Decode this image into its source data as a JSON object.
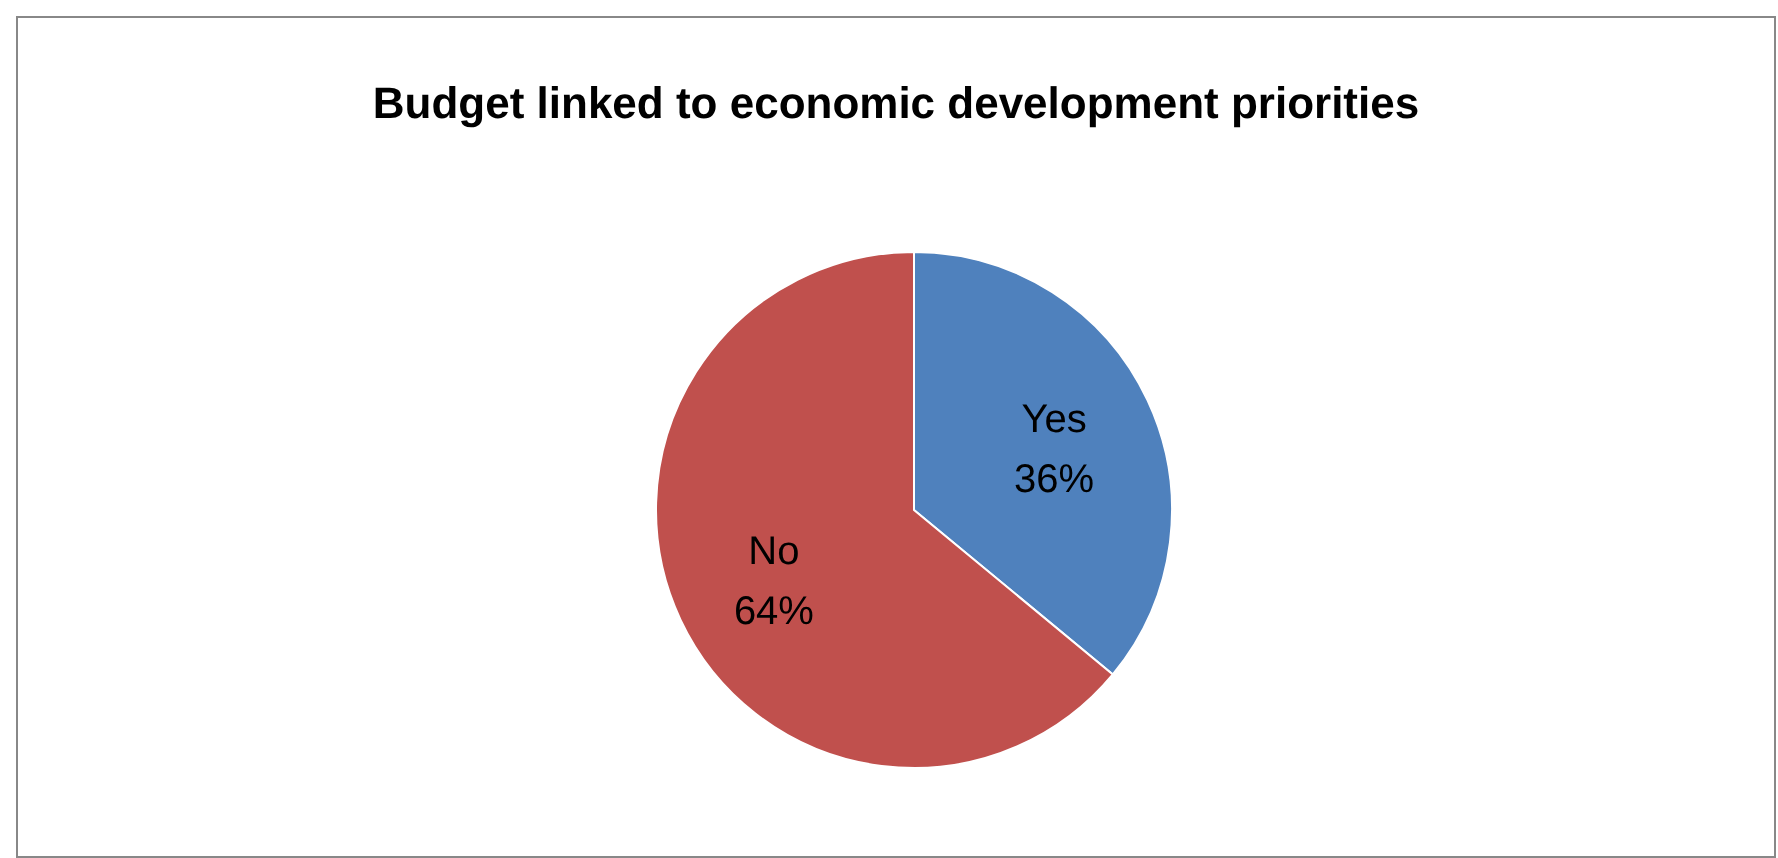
{
  "chart_data": {
    "type": "pie",
    "title": "Budget linked to economic development priorities",
    "categories": [
      "Yes",
      "No"
    ],
    "values": [
      36,
      64
    ],
    "value_labels": [
      "36%",
      "64%"
    ],
    "colors": [
      "#4f81bd",
      "#c0504d"
    ],
    "legend": false
  }
}
